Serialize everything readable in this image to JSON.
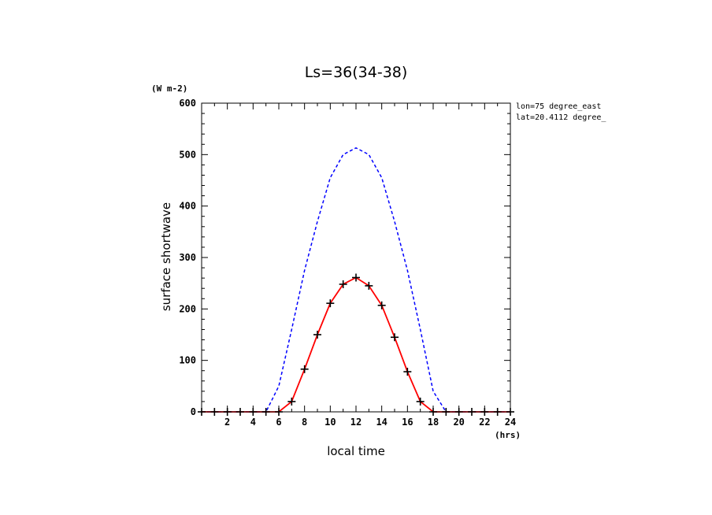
{
  "chart_data": {
    "type": "line",
    "title": "Ls=36(34-38)",
    "xlabel": "local time",
    "ylabel": "surface shortwave",
    "x_unit": "(hrs)",
    "y_unit": "(W m-2)",
    "annotations": [
      "lon=75 degree_east",
      "lat=20.4112 degree_"
    ],
    "xlim": [
      0,
      24
    ],
    "ylim": [
      0,
      600
    ],
    "x_ticks": [
      2,
      4,
      6,
      8,
      10,
      12,
      14,
      16,
      18,
      20,
      22,
      24
    ],
    "y_ticks": [
      0,
      100,
      200,
      300,
      400,
      500,
      600
    ],
    "grid": false,
    "series": [
      {
        "style": "dashed",
        "color": "#0000ff",
        "x": [
          0,
          1,
          2,
          3,
          4,
          5,
          6,
          7,
          8,
          9,
          10,
          11,
          12,
          13,
          14,
          15,
          16,
          17,
          18,
          19,
          20,
          21,
          22,
          23,
          24
        ],
        "y": [
          0,
          0,
          0,
          0,
          0,
          0,
          50,
          160,
          275,
          370,
          455,
          500,
          513,
          500,
          455,
          370,
          275,
          160,
          40,
          0,
          0,
          0,
          0,
          0,
          0
        ]
      },
      {
        "style": "solid",
        "color": "#ff0000",
        "x": [
          0,
          1,
          2,
          3,
          4,
          5,
          6,
          7,
          8,
          9,
          10,
          11,
          12,
          13,
          14,
          15,
          16,
          17,
          18,
          19,
          20,
          21,
          22,
          23,
          24
        ],
        "y": [
          0,
          0,
          0,
          0,
          0,
          0,
          0,
          20,
          83,
          150,
          211,
          248,
          261,
          245,
          207,
          145,
          78,
          20,
          0,
          0,
          0,
          0,
          0,
          0,
          0
        ]
      },
      {
        "style": "markers",
        "marker": "plus",
        "color": "#000000",
        "x": [
          0,
          1,
          2,
          3,
          4,
          5,
          6,
          7,
          8,
          9,
          10,
          11,
          12,
          13,
          14,
          15,
          16,
          17,
          18,
          19,
          20,
          21,
          22,
          23,
          24
        ],
        "y": [
          0,
          0,
          0,
          0,
          0,
          0,
          0,
          20,
          83,
          150,
          211,
          248,
          261,
          245,
          207,
          145,
          78,
          20,
          0,
          0,
          0,
          0,
          0,
          0,
          0
        ]
      }
    ]
  }
}
